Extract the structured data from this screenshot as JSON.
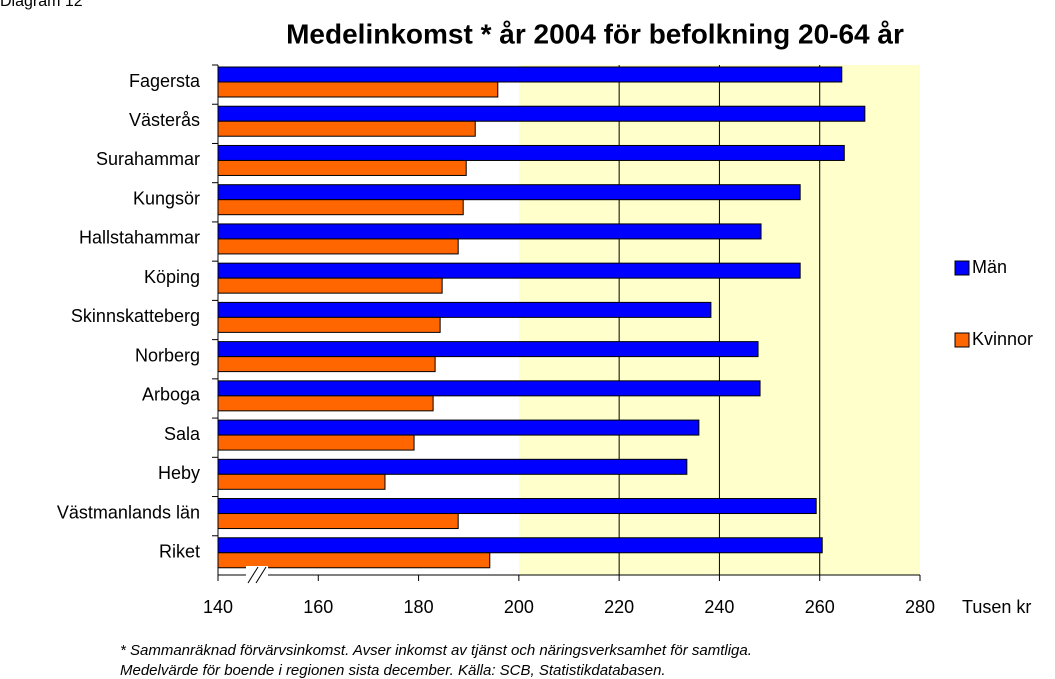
{
  "chart_data": {
    "type": "bar",
    "orientation": "horizontal",
    "caption": "Diagram 12",
    "title": "Medelinkomst * år 2004 för befolkning 20-64 år",
    "categories": [
      "Fagersta",
      "Västerås",
      "Surahammar",
      "Kungsör",
      "Hallstahammar",
      "Köping",
      "Skinnskatteberg",
      "Norberg",
      "Arboga",
      "Sala",
      "Heby",
      "Västmanlands län",
      "Riket"
    ],
    "series": [
      {
        "name": "Män",
        "color": "#0000ff",
        "values": [
          264.4,
          269.0,
          264.9,
          256.1,
          248.3,
          256.1,
          238.3,
          247.7,
          248.1,
          235.9,
          233.5,
          259.3,
          260.5
        ]
      },
      {
        "name": "Kvinnor",
        "color": "#ff6600",
        "values": [
          195.8,
          191.3,
          189.5,
          188.9,
          187.9,
          184.7,
          184.3,
          183.3,
          182.9,
          179.1,
          173.3,
          187.9,
          194.2
        ]
      }
    ],
    "xlim": [
      140,
      280
    ],
    "xticks": [
      140,
      160,
      180,
      200,
      220,
      240,
      260,
      280
    ],
    "x_label": "Tusen kr",
    "grid": true,
    "legend": "right",
    "notes": [
      "* Sammanräknad förvärvsinkomst. Avser inkomst av tjänst och näringsverksamhet för samtliga.",
      "Medelvärde för boende i regionen sista december.    Källa: SCB, Statistikdatabasen."
    ]
  }
}
